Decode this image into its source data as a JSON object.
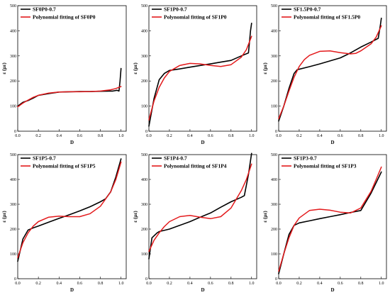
{
  "colors": {
    "measured": "#000000",
    "fitted": "#e31a1c"
  },
  "chart_data": [
    {
      "type": "line",
      "xlabel": "D",
      "ylabel": "ε (με)",
      "xlim": [
        0,
        1.05
      ],
      "ylim": [
        0,
        500
      ],
      "xticks": [
        0.0,
        0.2,
        0.4,
        0.6,
        0.8,
        1.0
      ],
      "xtick_labels": [
        "0.0",
        "0.2",
        "0.4",
        "0.6",
        "0.8",
        "1.0"
      ],
      "yticks": [
        0,
        100,
        200,
        300,
        400,
        500
      ],
      "ytick_labels": [
        "0",
        "100",
        "200",
        "300",
        "400",
        "500"
      ],
      "legend_position": "top-left",
      "series": [
        {
          "name": "SF0P0-0.7",
          "color": "#000000",
          "points": [
            [
              0,
              100
            ],
            [
              0.05,
              115
            ],
            [
              0.1,
              122
            ],
            [
              0.15,
              132
            ],
            [
              0.2,
              143
            ],
            [
              0.3,
              150
            ],
            [
              0.4,
              156
            ],
            [
              0.5,
              157
            ],
            [
              0.6,
              158
            ],
            [
              0.7,
              158
            ],
            [
              0.8,
              159
            ],
            [
              0.88,
              160
            ],
            [
              0.92,
              160
            ],
            [
              0.96,
              163
            ],
            [
              0.98,
              160
            ],
            [
              0.99,
              200
            ],
            [
              1.0,
              250
            ]
          ]
        },
        {
          "name": "Polynomial fitting of SF0P0",
          "color": "#e31a1c",
          "points": [
            [
              0,
              97
            ],
            [
              0.05,
              112
            ],
            [
              0.1,
              124
            ],
            [
              0.15,
              135
            ],
            [
              0.2,
              143
            ],
            [
              0.3,
              152
            ],
            [
              0.4,
              156
            ],
            [
              0.5,
              157
            ],
            [
              0.6,
              157
            ],
            [
              0.7,
              158
            ],
            [
              0.8,
              160
            ],
            [
              0.9,
              165
            ],
            [
              0.95,
              170
            ],
            [
              1.0,
              178
            ]
          ]
        }
      ]
    },
    {
      "type": "line",
      "xlabel": "D",
      "ylabel": "ε (με)",
      "xlim": [
        0,
        1.05
      ],
      "ylim": [
        0,
        500
      ],
      "xticks": [
        0.0,
        0.2,
        0.4,
        0.6,
        0.8,
        1.0
      ],
      "xtick_labels": [
        "0.0",
        "0.2",
        "0.4",
        "0.6",
        "0.8",
        "1.0"
      ],
      "yticks": [
        0,
        100,
        200,
        300,
        400,
        500
      ],
      "ytick_labels": [
        "0",
        "100",
        "200",
        "300",
        "400",
        "500"
      ],
      "legend_position": "top-left",
      "series": [
        {
          "name": "SF1P0-0.7",
          "color": "#000000",
          "points": [
            [
              0,
              20
            ],
            [
              0.05,
              130
            ],
            [
              0.1,
              205
            ],
            [
              0.15,
              230
            ],
            [
              0.2,
              242
            ],
            [
              0.3,
              248
            ],
            [
              0.4,
              255
            ],
            [
              0.5,
              262
            ],
            [
              0.6,
              268
            ],
            [
              0.7,
              275
            ],
            [
              0.8,
              282
            ],
            [
              0.9,
              300
            ],
            [
              0.97,
              312
            ],
            [
              0.99,
              400
            ],
            [
              1.0,
              430
            ]
          ]
        },
        {
          "name": "Polynomial fitting of SF1P0",
          "color": "#e31a1c",
          "points": [
            [
              0,
              45
            ],
            [
              0.05,
              120
            ],
            [
              0.1,
              175
            ],
            [
              0.15,
              212
            ],
            [
              0.2,
              238
            ],
            [
              0.3,
              262
            ],
            [
              0.4,
              270
            ],
            [
              0.5,
              268
            ],
            [
              0.6,
              262
            ],
            [
              0.7,
              258
            ],
            [
              0.8,
              265
            ],
            [
              0.9,
              295
            ],
            [
              0.95,
              325
            ],
            [
              1.0,
              378
            ]
          ]
        }
      ]
    },
    {
      "type": "line",
      "xlabel": "D",
      "ylabel": "ε (με)",
      "xlim": [
        0,
        1.05
      ],
      "ylim": [
        0,
        500
      ],
      "xticks": [
        0.0,
        0.2,
        0.4,
        0.6,
        0.8,
        1.0
      ],
      "xtick_labels": [
        "0.0",
        "0.2",
        "0.4",
        "0.6",
        "0.8",
        "1.0"
      ],
      "yticks": [
        0,
        100,
        200,
        300,
        400,
        500
      ],
      "ytick_labels": [
        "0",
        "100",
        "200",
        "300",
        "400",
        "500"
      ],
      "legend_position": "top-left",
      "series": [
        {
          "name": "SF1.5P0-0.7",
          "color": "#000000",
          "points": [
            [
              0,
              40
            ],
            [
              0.05,
              100
            ],
            [
              0.1,
              170
            ],
            [
              0.15,
              230
            ],
            [
              0.18,
              245
            ],
            [
              0.3,
              257
            ],
            [
              0.4,
              268
            ],
            [
              0.5,
              280
            ],
            [
              0.6,
              292
            ],
            [
              0.7,
              312
            ],
            [
              0.8,
              335
            ],
            [
              0.9,
              355
            ],
            [
              0.97,
              370
            ],
            [
              0.99,
              420
            ],
            [
              1.0,
              450
            ]
          ]
        },
        {
          "name": "Polynomial fitting of SF1.5P0",
          "color": "#e31a1c",
          "points": [
            [
              0,
              50
            ],
            [
              0.05,
              100
            ],
            [
              0.1,
              160
            ],
            [
              0.15,
              215
            ],
            [
              0.2,
              258
            ],
            [
              0.25,
              285
            ],
            [
              0.3,
              302
            ],
            [
              0.4,
              318
            ],
            [
              0.5,
              320
            ],
            [
              0.6,
              313
            ],
            [
              0.7,
              308
            ],
            [
              0.75,
              310
            ],
            [
              0.8,
              320
            ],
            [
              0.9,
              348
            ],
            [
              0.95,
              375
            ],
            [
              1.0,
              420
            ]
          ]
        }
      ]
    },
    {
      "type": "line",
      "xlabel": "D",
      "ylabel": "ε (με)",
      "xlim": [
        0,
        1.05
      ],
      "ylim": [
        0,
        500
      ],
      "xticks": [
        0.0,
        0.2,
        0.4,
        0.6,
        0.8,
        1.0
      ],
      "xtick_labels": [
        "0.0",
        "0.2",
        "0.4",
        "0.6",
        "0.8",
        "1.0"
      ],
      "yticks": [
        0,
        100,
        200,
        300,
        400,
        500
      ],
      "ytick_labels": [
        "0",
        "100",
        "200",
        "300",
        "400",
        "500"
      ],
      "legend_position": "top-left",
      "series": [
        {
          "name": "SF1P5-0.7",
          "color": "#000000",
          "points": [
            [
              0,
              70
            ],
            [
              0.05,
              160
            ],
            [
              0.1,
              196
            ],
            [
              0.15,
              205
            ],
            [
              0.2,
              212
            ],
            [
              0.3,
              228
            ],
            [
              0.4,
              243
            ],
            [
              0.5,
              258
            ],
            [
              0.6,
              273
            ],
            [
              0.7,
              290
            ],
            [
              0.8,
              310
            ],
            [
              0.85,
              322
            ],
            [
              0.9,
              350
            ],
            [
              0.95,
              410
            ],
            [
              1.0,
              483
            ]
          ]
        },
        {
          "name": "Polynomial fitting of SF1P5",
          "color": "#e31a1c",
          "points": [
            [
              0,
              85
            ],
            [
              0.05,
              145
            ],
            [
              0.1,
              185
            ],
            [
              0.15,
              212
            ],
            [
              0.2,
              230
            ],
            [
              0.3,
              248
            ],
            [
              0.4,
              252
            ],
            [
              0.5,
              250
            ],
            [
              0.6,
              250
            ],
            [
              0.7,
              262
            ],
            [
              0.8,
              292
            ],
            [
              0.9,
              350
            ],
            [
              0.95,
              400
            ],
            [
              1.0,
              470
            ]
          ]
        }
      ]
    },
    {
      "type": "line",
      "xlabel": "D",
      "ylabel": "ε (με)",
      "xlim": [
        0,
        1.05
      ],
      "ylim": [
        0,
        500
      ],
      "xticks": [
        0.0,
        0.2,
        0.4,
        0.6,
        0.8,
        1.0
      ],
      "xtick_labels": [
        "0.0",
        "0.2",
        "0.4",
        "0.6",
        "0.8",
        "1.0"
      ],
      "yticks": [
        0,
        100,
        200,
        300,
        400,
        500
      ],
      "ytick_labels": [
        "0",
        "100",
        "200",
        "300",
        "400",
        "500"
      ],
      "legend_position": "top-left",
      "series": [
        {
          "name": "SF1P4-0.7",
          "color": "#000000",
          "points": [
            [
              0,
              80
            ],
            [
              0.03,
              165
            ],
            [
              0.08,
              185
            ],
            [
              0.1,
              190
            ],
            [
              0.2,
              200
            ],
            [
              0.3,
              215
            ],
            [
              0.4,
              230
            ],
            [
              0.5,
              248
            ],
            [
              0.6,
              265
            ],
            [
              0.7,
              288
            ],
            [
              0.8,
              310
            ],
            [
              0.9,
              328
            ],
            [
              0.93,
              335
            ],
            [
              0.97,
              420
            ],
            [
              1.0,
              505
            ]
          ]
        },
        {
          "name": "Polynomial fitting of SF1P4",
          "color": "#e31a1c",
          "points": [
            [
              0,
              110
            ],
            [
              0.05,
              155
            ],
            [
              0.1,
              185
            ],
            [
              0.15,
              210
            ],
            [
              0.2,
              230
            ],
            [
              0.3,
              250
            ],
            [
              0.4,
              255
            ],
            [
              0.5,
              248
            ],
            [
              0.6,
              242
            ],
            [
              0.7,
              250
            ],
            [
              0.8,
              285
            ],
            [
              0.9,
              355
            ],
            [
              0.95,
              400
            ],
            [
              1.0,
              462
            ]
          ]
        }
      ]
    },
    {
      "type": "line",
      "xlabel": "D",
      "ylabel": "ε (με)",
      "xlim": [
        0,
        1.05
      ],
      "ylim": [
        0,
        500
      ],
      "xticks": [
        0.0,
        0.2,
        0.4,
        0.6,
        0.8,
        1.0
      ],
      "xtick_labels": [
        "0.0",
        "0.2",
        "0.4",
        "0.6",
        "0.8",
        "1.0"
      ],
      "yticks": [
        0,
        100,
        200,
        300,
        400,
        500
      ],
      "ytick_labels": [
        "0",
        "100",
        "200",
        "300",
        "400",
        "500"
      ],
      "legend_position": "top-left",
      "series": [
        {
          "name": "SF1P3-0.7",
          "color": "#000000",
          "points": [
            [
              0,
              20
            ],
            [
              0.05,
              100
            ],
            [
              0.1,
              178
            ],
            [
              0.13,
              200
            ],
            [
              0.15,
              215
            ],
            [
              0.2,
              225
            ],
            [
              0.3,
              233
            ],
            [
              0.4,
              242
            ],
            [
              0.5,
              250
            ],
            [
              0.6,
              258
            ],
            [
              0.7,
              267
            ],
            [
              0.8,
              275
            ],
            [
              0.9,
              345
            ],
            [
              1.0,
              430
            ]
          ]
        },
        {
          "name": "Polynomial fitting of SF1P3",
          "color": "#e31a1c",
          "points": [
            [
              0,
              30
            ],
            [
              0.05,
              100
            ],
            [
              0.1,
              165
            ],
            [
              0.15,
              215
            ],
            [
              0.2,
              245
            ],
            [
              0.3,
              275
            ],
            [
              0.4,
              280
            ],
            [
              0.5,
              276
            ],
            [
              0.6,
              268
            ],
            [
              0.7,
              265
            ],
            [
              0.8,
              285
            ],
            [
              0.9,
              352
            ],
            [
              0.95,
              400
            ],
            [
              1.0,
              450
            ]
          ]
        }
      ]
    }
  ]
}
